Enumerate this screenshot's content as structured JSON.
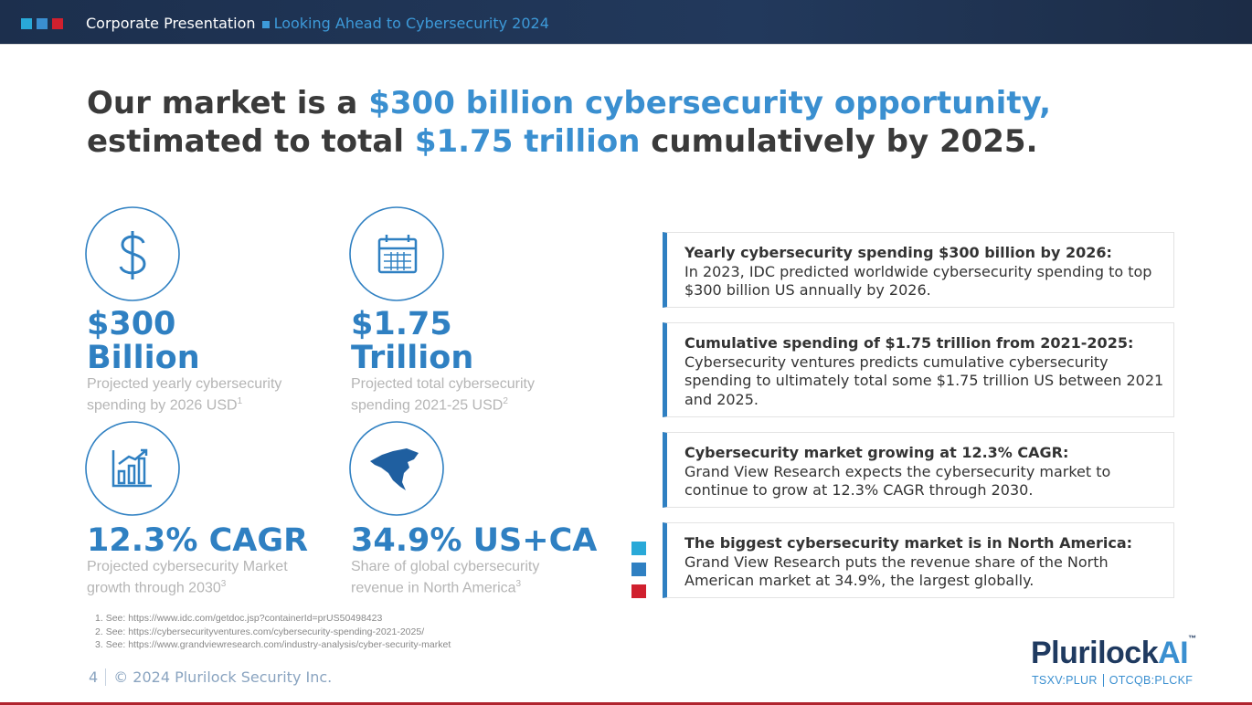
{
  "header": {
    "section": "Corporate Presentation",
    "subtitle": "Looking Ahead to Cybersecurity 2024"
  },
  "headline": {
    "part1": "Our market is a ",
    "accent1": "$300 billion cybersecurity opportunity,",
    "part2": "estimated to total ",
    "accent2": "$1.75 trillion",
    "part3": " cumulatively by 2025."
  },
  "stats": [
    {
      "lines": [
        "$300",
        "Billion"
      ],
      "description": "Projected yearly cybersecurity spending by 2026 USD",
      "note": "1"
    },
    {
      "lines": [
        "$1.75",
        "Trillion"
      ],
      "description": "Projected total cybersecurity spending 2021-25 USD",
      "note": "2"
    },
    {
      "lines": [
        "12.3% CAGR"
      ],
      "description": "Projected cybersecurity Market growth through 2030",
      "note": "3"
    },
    {
      "lines": [
        "34.9% US+CA"
      ],
      "description": "Share of global cybersecurity revenue in North America",
      "note": "3"
    }
  ],
  "cards": [
    {
      "title": "Yearly cybersecurity spending $300 billion by 2026:",
      "body": "In 2023, IDC predicted worldwide cybersecurity spending to top $300 billion US annually by 2026."
    },
    {
      "title": "Cumulative spending of $1.75 trillion from 2021-2025:",
      "body": "Cybersecurity ventures predicts cumulative cybersecurity spending to ultimately total some $1.75 trillion US between 2021 and 2025."
    },
    {
      "title": "Cybersecurity market growing at 12.3% CAGR:",
      "body": "Grand View Research expects the cybersecurity market to continue to grow at 12.3% CAGR through 2030."
    },
    {
      "title": "The biggest cybersecurity market is in North America:",
      "body": "Grand View Research puts the revenue share of the North American market at 34.9%, the largest globally."
    }
  ],
  "footnotes": [
    {
      "number": "1.",
      "text": "See: https://www.idc.com/getdoc.jsp?containerId=prUS50498423"
    },
    {
      "number": "2.",
      "text": "See: https://cybersecurityventures.com/cybersecurity-spending-2021-2025/"
    },
    {
      "number": "3.",
      "text": "See: https://www.grandviewresearch.com/industry-analysis/cyber-security-market"
    }
  ],
  "footer": {
    "page": "4",
    "copyright": "© 2024 Plurilock Security Inc."
  },
  "logo": {
    "name": "Plurilock",
    "accent": "AI",
    "trademark": "™",
    "ticker1": "TSXV:PLUR",
    "ticker2": "OTCQB:PLCKF"
  }
}
